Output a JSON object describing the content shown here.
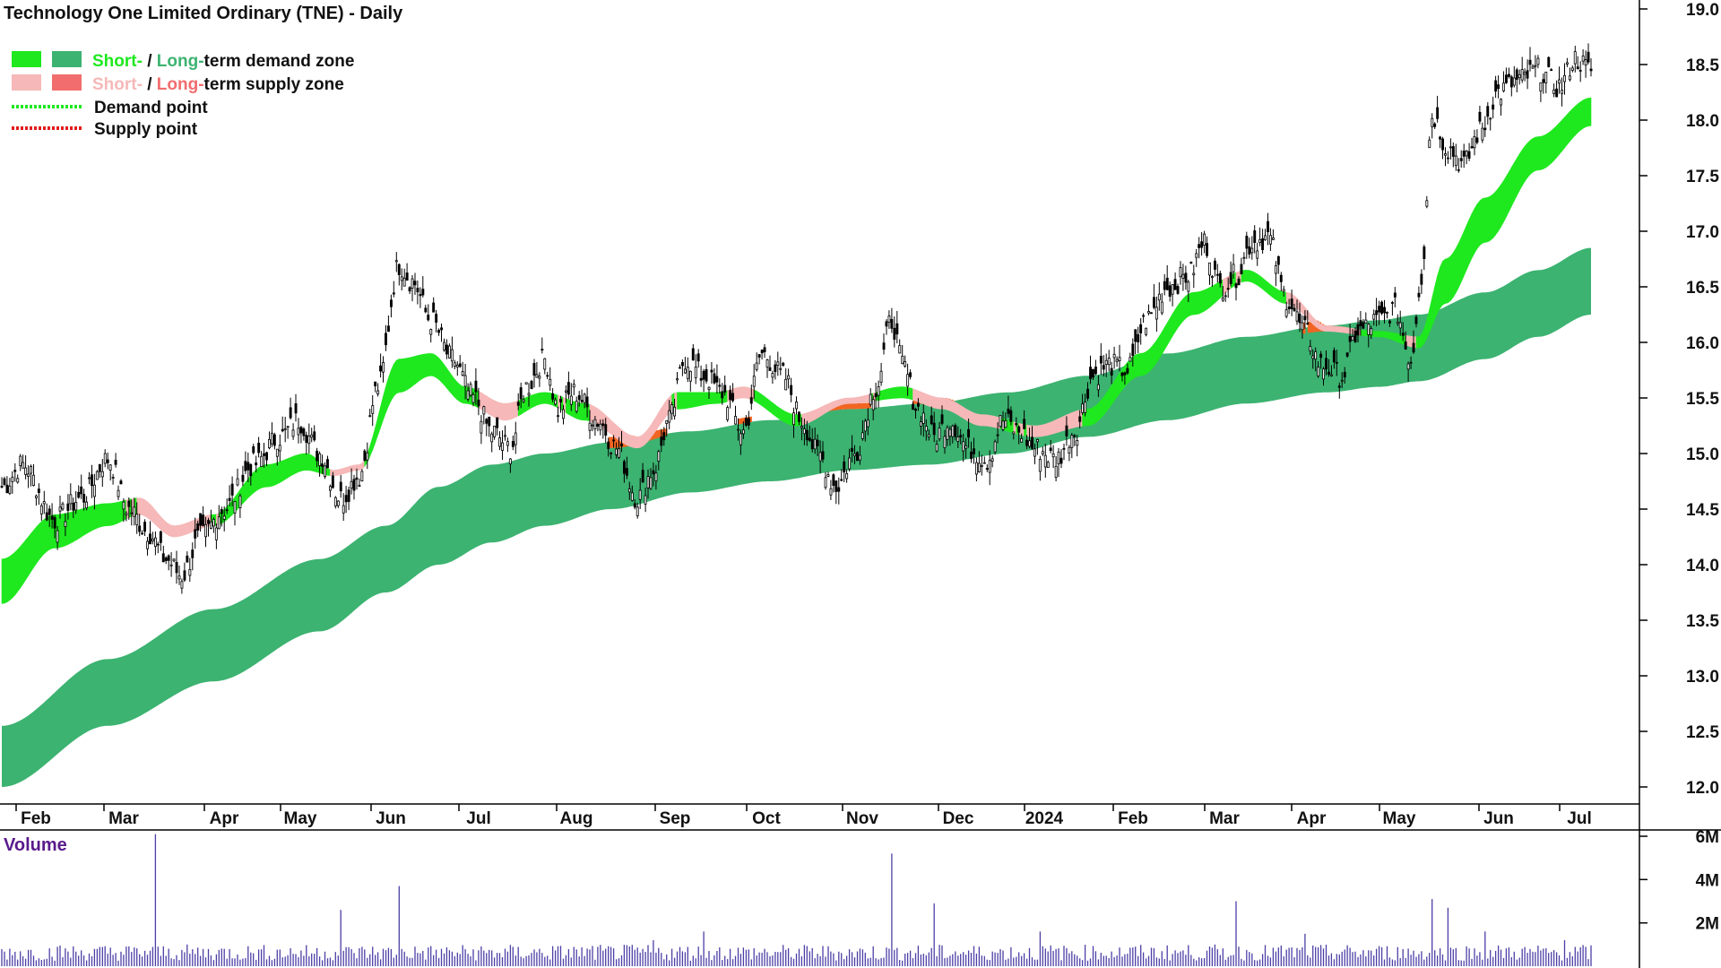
{
  "colors": {
    "short_demand": "#1fe81f",
    "long_demand": "#3cb371",
    "short_supply": "#f6b8b8",
    "long_supply": "#f26d6d",
    "demand_point": "#1fe81f",
    "supply_point": "#e31b1b",
    "overlap_supply": "#f26522",
    "volume_bar": "#4b3fa6",
    "axis": "#000000"
  },
  "chart_data": {
    "type": "candlestick",
    "title": "Technology One Limited Ordinary (TNE) - Daily",
    "legend": {
      "placement": "top-left",
      "items": [
        {
          "id": "demand_zone",
          "parts": [
            "Short-",
            " / ",
            "Long-",
            "term demand zone"
          ]
        },
        {
          "id": "supply_zone",
          "parts": [
            "Short-",
            " / ",
            "Long-",
            "term supply zone"
          ]
        },
        {
          "id": "demand_point",
          "label": "Demand point"
        },
        {
          "id": "supply_point",
          "label": "Supply point"
        }
      ]
    },
    "x_tick_labels": [
      "Feb",
      "Mar",
      "Apr",
      "May",
      "Jun",
      "Jul",
      "Aug",
      "Sep",
      "Oct",
      "Nov",
      "Dec",
      "2024",
      "Feb",
      "Mar",
      "Apr",
      "May",
      "Jun",
      "Jul"
    ],
    "y_axis": {
      "ylim": [
        11.9,
        19.1
      ],
      "ticks": [
        "12.0",
        "12.5",
        "13.0",
        "13.5",
        "14.0",
        "14.5",
        "15.0",
        "15.5",
        "16.0",
        "16.5",
        "17.0",
        "17.5",
        "18.0",
        "18.5",
        "19.0"
      ]
    },
    "price_keypoints": [
      [
        0,
        14.7
      ],
      [
        8,
        14.9
      ],
      [
        20,
        14.4
      ],
      [
        30,
        14.6
      ],
      [
        40,
        14.95
      ],
      [
        48,
        14.5
      ],
      [
        55,
        14.3
      ],
      [
        62,
        14.05
      ],
      [
        68,
        13.9
      ],
      [
        75,
        14.25
      ],
      [
        84,
        14.5
      ],
      [
        95,
        14.9
      ],
      [
        105,
        15.15
      ],
      [
        112,
        15.3
      ],
      [
        120,
        15.0
      ],
      [
        128,
        14.6
      ],
      [
        135,
        14.8
      ],
      [
        142,
        15.6
      ],
      [
        150,
        16.7
      ],
      [
        155,
        16.55
      ],
      [
        162,
        16.2
      ],
      [
        170,
        15.85
      ],
      [
        178,
        15.5
      ],
      [
        185,
        15.2
      ],
      [
        192,
        15.05
      ],
      [
        198,
        15.6
      ],
      [
        205,
        15.85
      ],
      [
        210,
        15.4
      ],
      [
        216,
        15.55
      ],
      [
        225,
        15.3
      ],
      [
        232,
        15.05
      ],
      [
        240,
        14.6
      ],
      [
        246,
        14.85
      ],
      [
        252,
        15.3
      ],
      [
        258,
        15.85
      ],
      [
        265,
        15.7
      ],
      [
        272,
        15.55
      ],
      [
        280,
        15.2
      ],
      [
        287,
        15.9
      ],
      [
        295,
        15.7
      ],
      [
        302,
        15.3
      ],
      [
        308,
        15.0
      ],
      [
        315,
        14.7
      ],
      [
        322,
        15.0
      ],
      [
        330,
        15.6
      ],
      [
        336,
        16.2
      ],
      [
        340,
        15.8
      ],
      [
        346,
        15.4
      ],
      [
        352,
        15.15
      ],
      [
        358,
        15.3
      ],
      [
        365,
        15.05
      ],
      [
        372,
        14.95
      ],
      [
        378,
        15.3
      ],
      [
        384,
        15.2
      ],
      [
        390,
        15.05
      ],
      [
        398,
        14.95
      ],
      [
        405,
        15.2
      ],
      [
        412,
        15.7
      ],
      [
        418,
        15.8
      ],
      [
        425,
        15.75
      ],
      [
        432,
        16.2
      ],
      [
        440,
        16.5
      ],
      [
        448,
        16.6
      ],
      [
        454,
        16.9
      ],
      [
        460,
        16.5
      ],
      [
        466,
        16.6
      ],
      [
        472,
        16.9
      ],
      [
        478,
        16.95
      ],
      [
        485,
        16.4
      ],
      [
        492,
        16.1
      ],
      [
        498,
        15.8
      ],
      [
        506,
        15.7
      ],
      [
        512,
        16.1
      ],
      [
        520,
        16.2
      ],
      [
        526,
        16.3
      ],
      [
        532,
        15.85
      ],
      [
        536,
        16.6
      ],
      [
        540,
        18.05
      ],
      [
        546,
        17.75
      ],
      [
        552,
        17.6
      ],
      [
        558,
        17.9
      ],
      [
        565,
        18.25
      ],
      [
        572,
        18.35
      ],
      [
        580,
        18.45
      ],
      [
        588,
        18.3
      ],
      [
        594,
        18.55
      ],
      [
        600,
        18.45
      ]
    ],
    "bands_keypoints": {
      "long_upper": [
        [
          0,
          12.55
        ],
        [
          40,
          13.15
        ],
        [
          80,
          13.6
        ],
        [
          120,
          14.05
        ],
        [
          145,
          14.35
        ],
        [
          165,
          14.7
        ],
        [
          185,
          14.9
        ],
        [
          205,
          15.0
        ],
        [
          230,
          15.1
        ],
        [
          260,
          15.2
        ],
        [
          290,
          15.3
        ],
        [
          320,
          15.4
        ],
        [
          350,
          15.45
        ],
        [
          380,
          15.55
        ],
        [
          410,
          15.7
        ],
        [
          440,
          15.9
        ],
        [
          470,
          16.05
        ],
        [
          500,
          16.15
        ],
        [
          520,
          16.2
        ],
        [
          535,
          16.25
        ],
        [
          560,
          16.45
        ],
        [
          580,
          16.65
        ],
        [
          600,
          16.85
        ]
      ],
      "long_lower": [
        [
          0,
          12.0
        ],
        [
          40,
          12.55
        ],
        [
          80,
          12.95
        ],
        [
          120,
          13.4
        ],
        [
          145,
          13.75
        ],
        [
          165,
          14.0
        ],
        [
          185,
          14.2
        ],
        [
          205,
          14.35
        ],
        [
          230,
          14.5
        ],
        [
          260,
          14.65
        ],
        [
          290,
          14.75
        ],
        [
          320,
          14.85
        ],
        [
          350,
          14.9
        ],
        [
          380,
          15.0
        ],
        [
          410,
          15.15
        ],
        [
          440,
          15.3
        ],
        [
          470,
          15.45
        ],
        [
          500,
          15.55
        ],
        [
          520,
          15.6
        ],
        [
          535,
          15.65
        ],
        [
          560,
          15.85
        ],
        [
          580,
          16.05
        ],
        [
          600,
          16.25
        ]
      ],
      "short_upper": [
        [
          0,
          14.05
        ],
        [
          20,
          14.45
        ],
        [
          40,
          14.55
        ],
        [
          52,
          14.6
        ],
        [
          65,
          14.35
        ],
        [
          80,
          14.45
        ],
        [
          100,
          14.9
        ],
        [
          115,
          15.0
        ],
        [
          125,
          14.85
        ],
        [
          135,
          14.9
        ],
        [
          150,
          15.85
        ],
        [
          162,
          15.9
        ],
        [
          175,
          15.6
        ],
        [
          190,
          15.45
        ],
        [
          205,
          15.55
        ],
        [
          220,
          15.45
        ],
        [
          240,
          15.15
        ],
        [
          255,
          15.55
        ],
        [
          270,
          15.55
        ],
        [
          280,
          15.6
        ],
        [
          300,
          15.35
        ],
        [
          320,
          15.5
        ],
        [
          340,
          15.6
        ],
        [
          355,
          15.5
        ],
        [
          370,
          15.35
        ],
        [
          390,
          15.25
        ],
        [
          410,
          15.4
        ],
        [
          430,
          15.9
        ],
        [
          450,
          16.45
        ],
        [
          470,
          16.65
        ],
        [
          485,
          16.45
        ],
        [
          500,
          16.15
        ],
        [
          520,
          16.1
        ],
        [
          535,
          16.05
        ],
        [
          545,
          16.75
        ],
        [
          560,
          17.3
        ],
        [
          580,
          17.85
        ],
        [
          600,
          18.2
        ]
      ],
      "short_lower": [
        [
          0,
          13.65
        ],
        [
          20,
          14.15
        ],
        [
          40,
          14.35
        ],
        [
          52,
          14.45
        ],
        [
          65,
          14.25
        ],
        [
          80,
          14.35
        ],
        [
          100,
          14.7
        ],
        [
          115,
          14.85
        ],
        [
          125,
          14.8
        ],
        [
          135,
          14.85
        ],
        [
          150,
          15.55
        ],
        [
          162,
          15.7
        ],
        [
          175,
          15.45
        ],
        [
          190,
          15.3
        ],
        [
          205,
          15.45
        ],
        [
          220,
          15.3
        ],
        [
          240,
          15.05
        ],
        [
          255,
          15.4
        ],
        [
          270,
          15.45
        ],
        [
          280,
          15.5
        ],
        [
          300,
          15.25
        ],
        [
          320,
          15.45
        ],
        [
          340,
          15.5
        ],
        [
          355,
          15.4
        ],
        [
          370,
          15.25
        ],
        [
          390,
          15.15
        ],
        [
          410,
          15.25
        ],
        [
          430,
          15.7
        ],
        [
          450,
          16.25
        ],
        [
          470,
          16.55
        ],
        [
          485,
          16.35
        ],
        [
          500,
          16.1
        ],
        [
          520,
          16.05
        ],
        [
          535,
          15.95
        ],
        [
          545,
          16.35
        ],
        [
          560,
          16.9
        ],
        [
          580,
          17.55
        ],
        [
          600,
          17.95
        ]
      ]
    },
    "volume_axis": {
      "label": "Volume",
      "ylim": [
        0,
        6.5
      ],
      "ticks": [
        "2M",
        "4M",
        "6M"
      ]
    },
    "volume_spikes": [
      [
        58,
        6.1
      ],
      [
        128,
        2.6
      ],
      [
        150,
        3.7
      ],
      [
        246,
        1.2
      ],
      [
        265,
        1.6
      ],
      [
        336,
        5.2
      ],
      [
        352,
        2.9
      ],
      [
        392,
        1.6
      ],
      [
        466,
        3.0
      ],
      [
        492,
        1.5
      ],
      [
        540,
        3.1
      ],
      [
        546,
        2.7
      ],
      [
        560,
        1.6
      ],
      [
        590,
        1.2
      ]
    ]
  }
}
